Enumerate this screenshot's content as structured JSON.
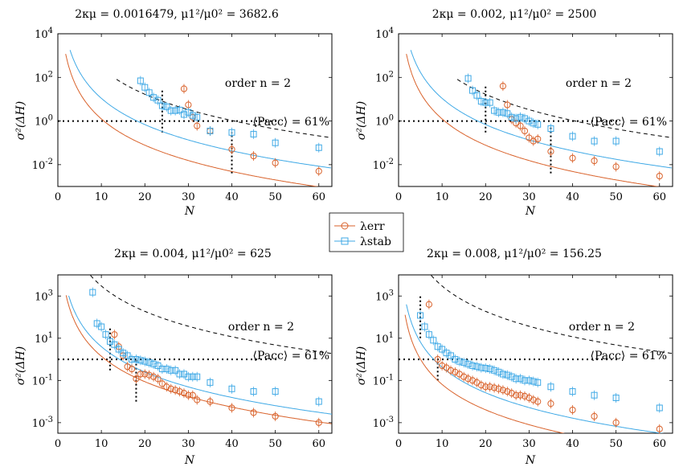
{
  "colors": {
    "err": "#d9622b",
    "stab": "#3fa9e6",
    "dashed": "#000000"
  },
  "legend": {
    "err_label": "λerr",
    "stab_label": "λstab"
  },
  "chart_data": [
    {
      "type": "scatter",
      "title": "2κμ = 0.0016479,   μ1²/μ0² = 3682.6",
      "xlabel": "N",
      "ylabel": "σ²(ΔH)",
      "xlim": [
        0,
        63
      ],
      "ylim_log10": [
        -3,
        4
      ],
      "xticks": [
        0,
        10,
        20,
        30,
        40,
        50,
        60
      ],
      "yticks": [
        {
          "v": 4,
          "label": "10^4"
        },
        {
          "v": 2,
          "label": "10^2"
        },
        {
          "v": 0,
          "label": "10^0"
        },
        {
          "v": -2,
          "label": "10^-2"
        }
      ],
      "annotations": {
        "order": "order n = 2",
        "pacc": "⟨Pacc⟩ = 61%"
      },
      "pacc_level": 1,
      "vlines": [
        {
          "x": 24,
          "from": 0.3,
          "to": 25
        },
        {
          "x": 40,
          "from": 0.004,
          "to": 0.3
        }
      ],
      "series": [
        {
          "name": "λerr",
          "color": "err",
          "marker": "circle",
          "x": [
            29,
            30,
            31,
            32,
            35,
            40,
            45,
            50,
            60
          ],
          "y": [
            30,
            5.5,
            1.5,
            0.6,
            0.35,
            0.05,
            0.025,
            0.012,
            0.005
          ]
        },
        {
          "name": "λstab",
          "color": "stab",
          "marker": "square",
          "x": [
            19,
            20,
            21,
            22,
            23,
            24,
            25,
            26,
            27,
            28,
            29,
            30,
            31,
            32,
            35,
            40,
            45,
            50,
            60
          ],
          "y": [
            70,
            35,
            20,
            12,
            9,
            5,
            4.5,
            3,
            3,
            3.2,
            2,
            2.5,
            1.8,
            1.5,
            0.35,
            0.3,
            0.25,
            0.1,
            0.06
          ]
        },
        {
          "name": "order n = 2",
          "color": "dashed",
          "curve": {
            "A": 2700000.0,
            "p": 4,
            "xmin": 13.5
          }
        },
        {
          "name": "λerr fit",
          "color": "err",
          "curve": {
            "A": 12500.0,
            "p": 4,
            "xmin": 1.8
          }
        },
        {
          "name": "λstab fit",
          "color": "stab",
          "curve": {
            "A": 110000.0,
            "p": 4,
            "xmin": 2.8
          }
        }
      ]
    },
    {
      "type": "scatter",
      "title": "2κμ = 0.002,   μ1²/μ0² = 2500",
      "xlabel": "N",
      "ylabel": "σ²(ΔH)",
      "xlim": [
        0,
        63
      ],
      "ylim_log10": [
        -3,
        4
      ],
      "xticks": [
        0,
        10,
        20,
        30,
        40,
        50,
        60
      ],
      "yticks": [
        {
          "v": 4,
          "label": "10^4"
        },
        {
          "v": 2,
          "label": "10^2"
        },
        {
          "v": 0,
          "label": "10^0"
        },
        {
          "v": -2,
          "label": "10^-2"
        }
      ],
      "annotations": {
        "order": "order n = 2",
        "pacc": "⟨Pacc⟩ = 61%"
      },
      "pacc_level": 1,
      "vlines": [
        {
          "x": 20,
          "from": 0.3,
          "to": 40
        },
        {
          "x": 35,
          "from": 0.004,
          "to": 0.5
        }
      ],
      "series": [
        {
          "name": "λerr",
          "color": "err",
          "marker": "circle",
          "x": [
            24,
            25,
            26,
            27,
            28,
            29,
            30,
            31,
            32,
            35,
            40,
            45,
            50,
            60
          ],
          "y": [
            40,
            5.5,
            1.2,
            0.8,
            0.6,
            0.35,
            0.17,
            0.12,
            0.15,
            0.04,
            0.02,
            0.015,
            0.008,
            0.003
          ]
        },
        {
          "name": "λstab",
          "color": "stab",
          "marker": "square",
          "x": [
            16,
            17,
            18,
            19,
            20,
            21,
            22,
            23,
            24,
            25,
            26,
            27,
            28,
            29,
            30,
            31,
            32,
            35,
            40,
            45,
            50,
            60
          ],
          "y": [
            90,
            25,
            15,
            8,
            7,
            7,
            3,
            2.5,
            2.5,
            2.2,
            1.5,
            1.3,
            1.5,
            1.3,
            1,
            0.8,
            0.7,
            0.45,
            0.2,
            0.12,
            0.12,
            0.04
          ]
        },
        {
          "name": "order n = 2",
          "color": "dashed",
          "curve": {
            "A": 2700000.0,
            "p": 4,
            "xmin": 13.5
          }
        },
        {
          "name": "λerr fit",
          "color": "err",
          "curve": {
            "A": 12500.0,
            "p": 4,
            "xmin": 1.8
          }
        },
        {
          "name": "λstab fit",
          "color": "stab",
          "curve": {
            "A": 110000.0,
            "p": 4,
            "xmin": 2.8
          }
        }
      ]
    },
    {
      "type": "scatter",
      "title": "2κμ = 0.004,   μ1²/μ0² = 625",
      "xlabel": "N",
      "ylabel": "σ²(ΔH)",
      "xlim": [
        0,
        63
      ],
      "ylim_log10": [
        -3.5,
        4
      ],
      "xticks": [
        0,
        10,
        20,
        30,
        40,
        50,
        60
      ],
      "yticks": [
        {
          "v": 3,
          "label": "10^3"
        },
        {
          "v": 1,
          "label": "10^1"
        },
        {
          "v": -1,
          "label": "10^-1"
        },
        {
          "v": -3,
          "label": "10^-3"
        }
      ],
      "annotations": {
        "order": "order n = 2",
        "pacc": "⟨Pacc⟩ = 61%"
      },
      "pacc_level": 1,
      "vlines": [
        {
          "x": 12,
          "from": 0.3,
          "to": 30
        },
        {
          "x": 18,
          "from": 0.01,
          "to": 1.2
        }
      ],
      "series": [
        {
          "name": "λerr",
          "color": "err",
          "marker": "circle",
          "x": [
            13,
            14,
            15,
            16,
            17,
            18,
            19,
            20,
            21,
            22,
            23,
            24,
            25,
            26,
            27,
            28,
            29,
            30,
            31,
            32,
            35,
            40,
            45,
            50,
            60
          ],
          "y": [
            15,
            4,
            1.5,
            0.45,
            0.35,
            0.12,
            0.2,
            0.2,
            0.18,
            0.15,
            0.12,
            0.07,
            0.05,
            0.04,
            0.035,
            0.03,
            0.025,
            0.02,
            0.02,
            0.012,
            0.01,
            0.005,
            0.003,
            0.002,
            0.001
          ]
        },
        {
          "name": "λstab",
          "color": "stab",
          "marker": "square",
          "x": [
            8,
            9,
            10,
            11,
            12,
            13,
            14,
            15,
            16,
            17,
            18,
            19,
            20,
            21,
            22,
            23,
            24,
            25,
            26,
            27,
            28,
            29,
            30,
            31,
            32,
            35,
            40,
            45,
            50,
            60
          ],
          "y": [
            1500,
            50,
            35,
            15,
            7,
            5,
            3,
            2,
            1.5,
            1,
            1,
            0.9,
            0.8,
            0.7,
            0.6,
            0.5,
            0.35,
            0.35,
            0.3,
            0.3,
            0.2,
            0.2,
            0.15,
            0.15,
            0.15,
            0.08,
            0.04,
            0.03,
            0.03,
            0.01
          ]
        },
        {
          "name": "order n = 2",
          "color": "dashed",
          "curve": {
            "A": 30000000.0,
            "p": 4,
            "xmin": 7.5
          }
        },
        {
          "name": "λerr fit",
          "color": "err",
          "curve": {
            "A": 14000.0,
            "p": 4,
            "xmin": 1.9
          }
        },
        {
          "name": "λstab fit",
          "color": "stab",
          "curve": {
            "A": 40000.0,
            "p": 4,
            "xmin": 2.5
          }
        }
      ]
    },
    {
      "type": "scatter",
      "title": "2κμ = 0.008,   μ1²/μ0² = 156.25",
      "xlabel": "N",
      "ylabel": "σ²(ΔH)",
      "xlim": [
        0,
        63
      ],
      "ylim_log10": [
        -3.5,
        4
      ],
      "xticks": [
        0,
        10,
        20,
        30,
        40,
        50,
        60
      ],
      "yticks": [
        {
          "v": 3,
          "label": "10^3"
        },
        {
          "v": 1,
          "label": "10^1"
        },
        {
          "v": -1,
          "label": "10^-1"
        },
        {
          "v": -3,
          "label": "10^-3"
        }
      ],
      "annotations": {
        "order": "order n = 2",
        "pacc": "⟨Pacc⟩ = 61%"
      },
      "pacc_level": 1,
      "vlines": [
        {
          "x": 5,
          "from": 10,
          "to": 1000
        },
        {
          "x": 9,
          "from": 0.1,
          "to": 1
        }
      ],
      "series": [
        {
          "name": "λerr",
          "color": "err",
          "marker": "circle",
          "x": [
            7,
            9,
            10,
            11,
            12,
            13,
            14,
            15,
            16,
            17,
            18,
            19,
            20,
            21,
            22,
            23,
            24,
            25,
            26,
            27,
            28,
            29,
            30,
            31,
            32,
            35,
            40,
            45,
            50,
            60
          ],
          "y": [
            400,
            1,
            0.5,
            0.4,
            0.3,
            0.25,
            0.2,
            0.15,
            0.12,
            0.1,
            0.08,
            0.06,
            0.05,
            0.05,
            0.045,
            0.04,
            0.035,
            0.03,
            0.025,
            0.02,
            0.02,
            0.018,
            0.015,
            0.012,
            0.01,
            0.008,
            0.004,
            0.002,
            0.001,
            0.0005
          ]
        },
        {
          "name": "λstab",
          "color": "stab",
          "marker": "square",
          "x": [
            5,
            6,
            7,
            8,
            9,
            10,
            11,
            12,
            13,
            14,
            15,
            16,
            17,
            18,
            19,
            20,
            21,
            22,
            23,
            24,
            25,
            26,
            27,
            28,
            29,
            30,
            31,
            32,
            35,
            40,
            45,
            50,
            60
          ],
          "y": [
            120,
            35,
            15,
            8,
            4,
            3,
            2,
            1.5,
            1,
            0.8,
            0.7,
            0.6,
            0.5,
            0.45,
            0.4,
            0.38,
            0.35,
            0.3,
            0.25,
            0.2,
            0.18,
            0.15,
            0.12,
            0.12,
            0.1,
            0.1,
            0.09,
            0.08,
            0.05,
            0.03,
            0.02,
            0.015,
            0.005
          ]
        },
        {
          "name": "order n = 2",
          "color": "dashed",
          "curve": {
            "A": 30000000.0,
            "p": 4,
            "xmin": 7.5
          }
        },
        {
          "name": "λerr fit",
          "color": "err",
          "curve": {
            "A": 650,
            "p": 4,
            "xmin": 1.5
          }
        },
        {
          "name": "λstab fit",
          "color": "stab",
          "curve": {
            "A": 4200,
            "p": 4,
            "xmin": 1.8
          }
        }
      ]
    }
  ]
}
